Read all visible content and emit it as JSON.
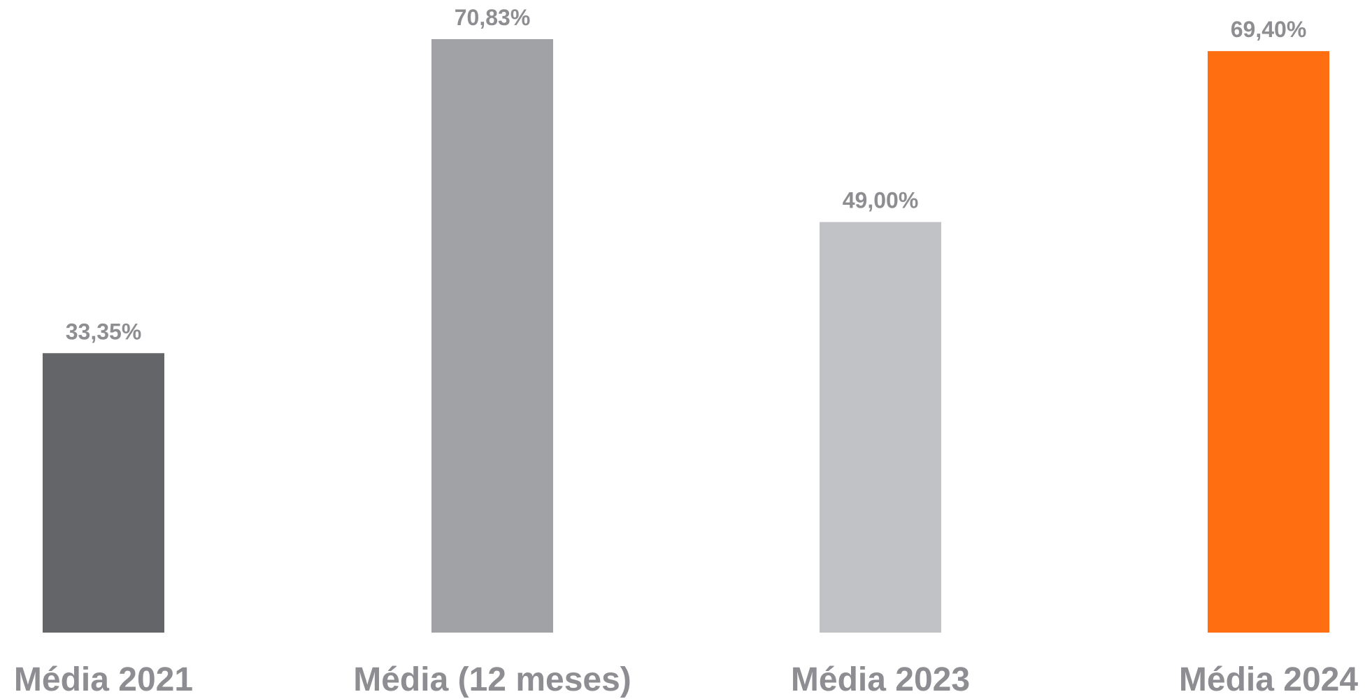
{
  "chart_data": {
    "type": "bar",
    "categories": [
      "Média 2021",
      "Média (12 meses)",
      "Média 2023",
      "Média 2024"
    ],
    "values": [
      33.35,
      70.83,
      49.0,
      69.4
    ],
    "value_labels": [
      "33,35%",
      "70,83%",
      "49,00%",
      "69,40%"
    ],
    "colors": [
      "#646569",
      "#a1a2a6",
      "#c1c2c6",
      "#ff6e11"
    ],
    "ylim": [
      0,
      70.83
    ],
    "title": "",
    "xlabel": "",
    "ylabel": "",
    "grid": false,
    "legend": "none"
  }
}
